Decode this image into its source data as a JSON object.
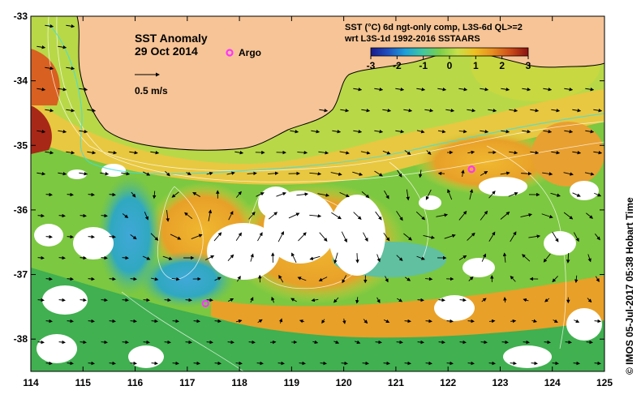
{
  "map": {
    "title": "SST Anomaly",
    "date": "29 Oct 2014",
    "argo_label": "Argo",
    "vector_scale_label": "0.5 m/s",
    "legend_title_line1": "SST (°C) 6d ngt-only comp, L3S-6d QL>=2",
    "legend_title_line2": "wrt L3S-1d 1992-2016 SSTAARS",
    "colorbar_ticks": [
      "-3",
      "-2",
      "-1",
      "0",
      "1",
      "2",
      "3"
    ],
    "colorbar_range": [
      -3,
      3
    ],
    "colorbar_colors": [
      "#1a1a8c",
      "#2050c0",
      "#1ea0d8",
      "#40c8a0",
      "#7ccf4a",
      "#c8e04a",
      "#f0c020",
      "#e89020",
      "#d05018",
      "#8a1010"
    ],
    "credit": "©  IMOS 05-Jul-2017 05:38 Hobart Time",
    "lon_labels": [
      "114",
      "115",
      "116",
      "117",
      "118",
      "119",
      "120",
      "121",
      "122",
      "123",
      "124",
      "125"
    ],
    "lat_labels": [
      "-33",
      "-34",
      "-35",
      "-36",
      "-37",
      "-38"
    ],
    "lon_range": [
      114,
      125
    ],
    "lat_range": [
      -38.5,
      -33
    ],
    "land_color": "#f6c496",
    "argo_color": "#ff33ff",
    "argo_floats": [
      {
        "lon": 122.45,
        "lat": -35.37
      },
      {
        "lon": 117.35,
        "lat": -37.45
      }
    ]
  }
}
